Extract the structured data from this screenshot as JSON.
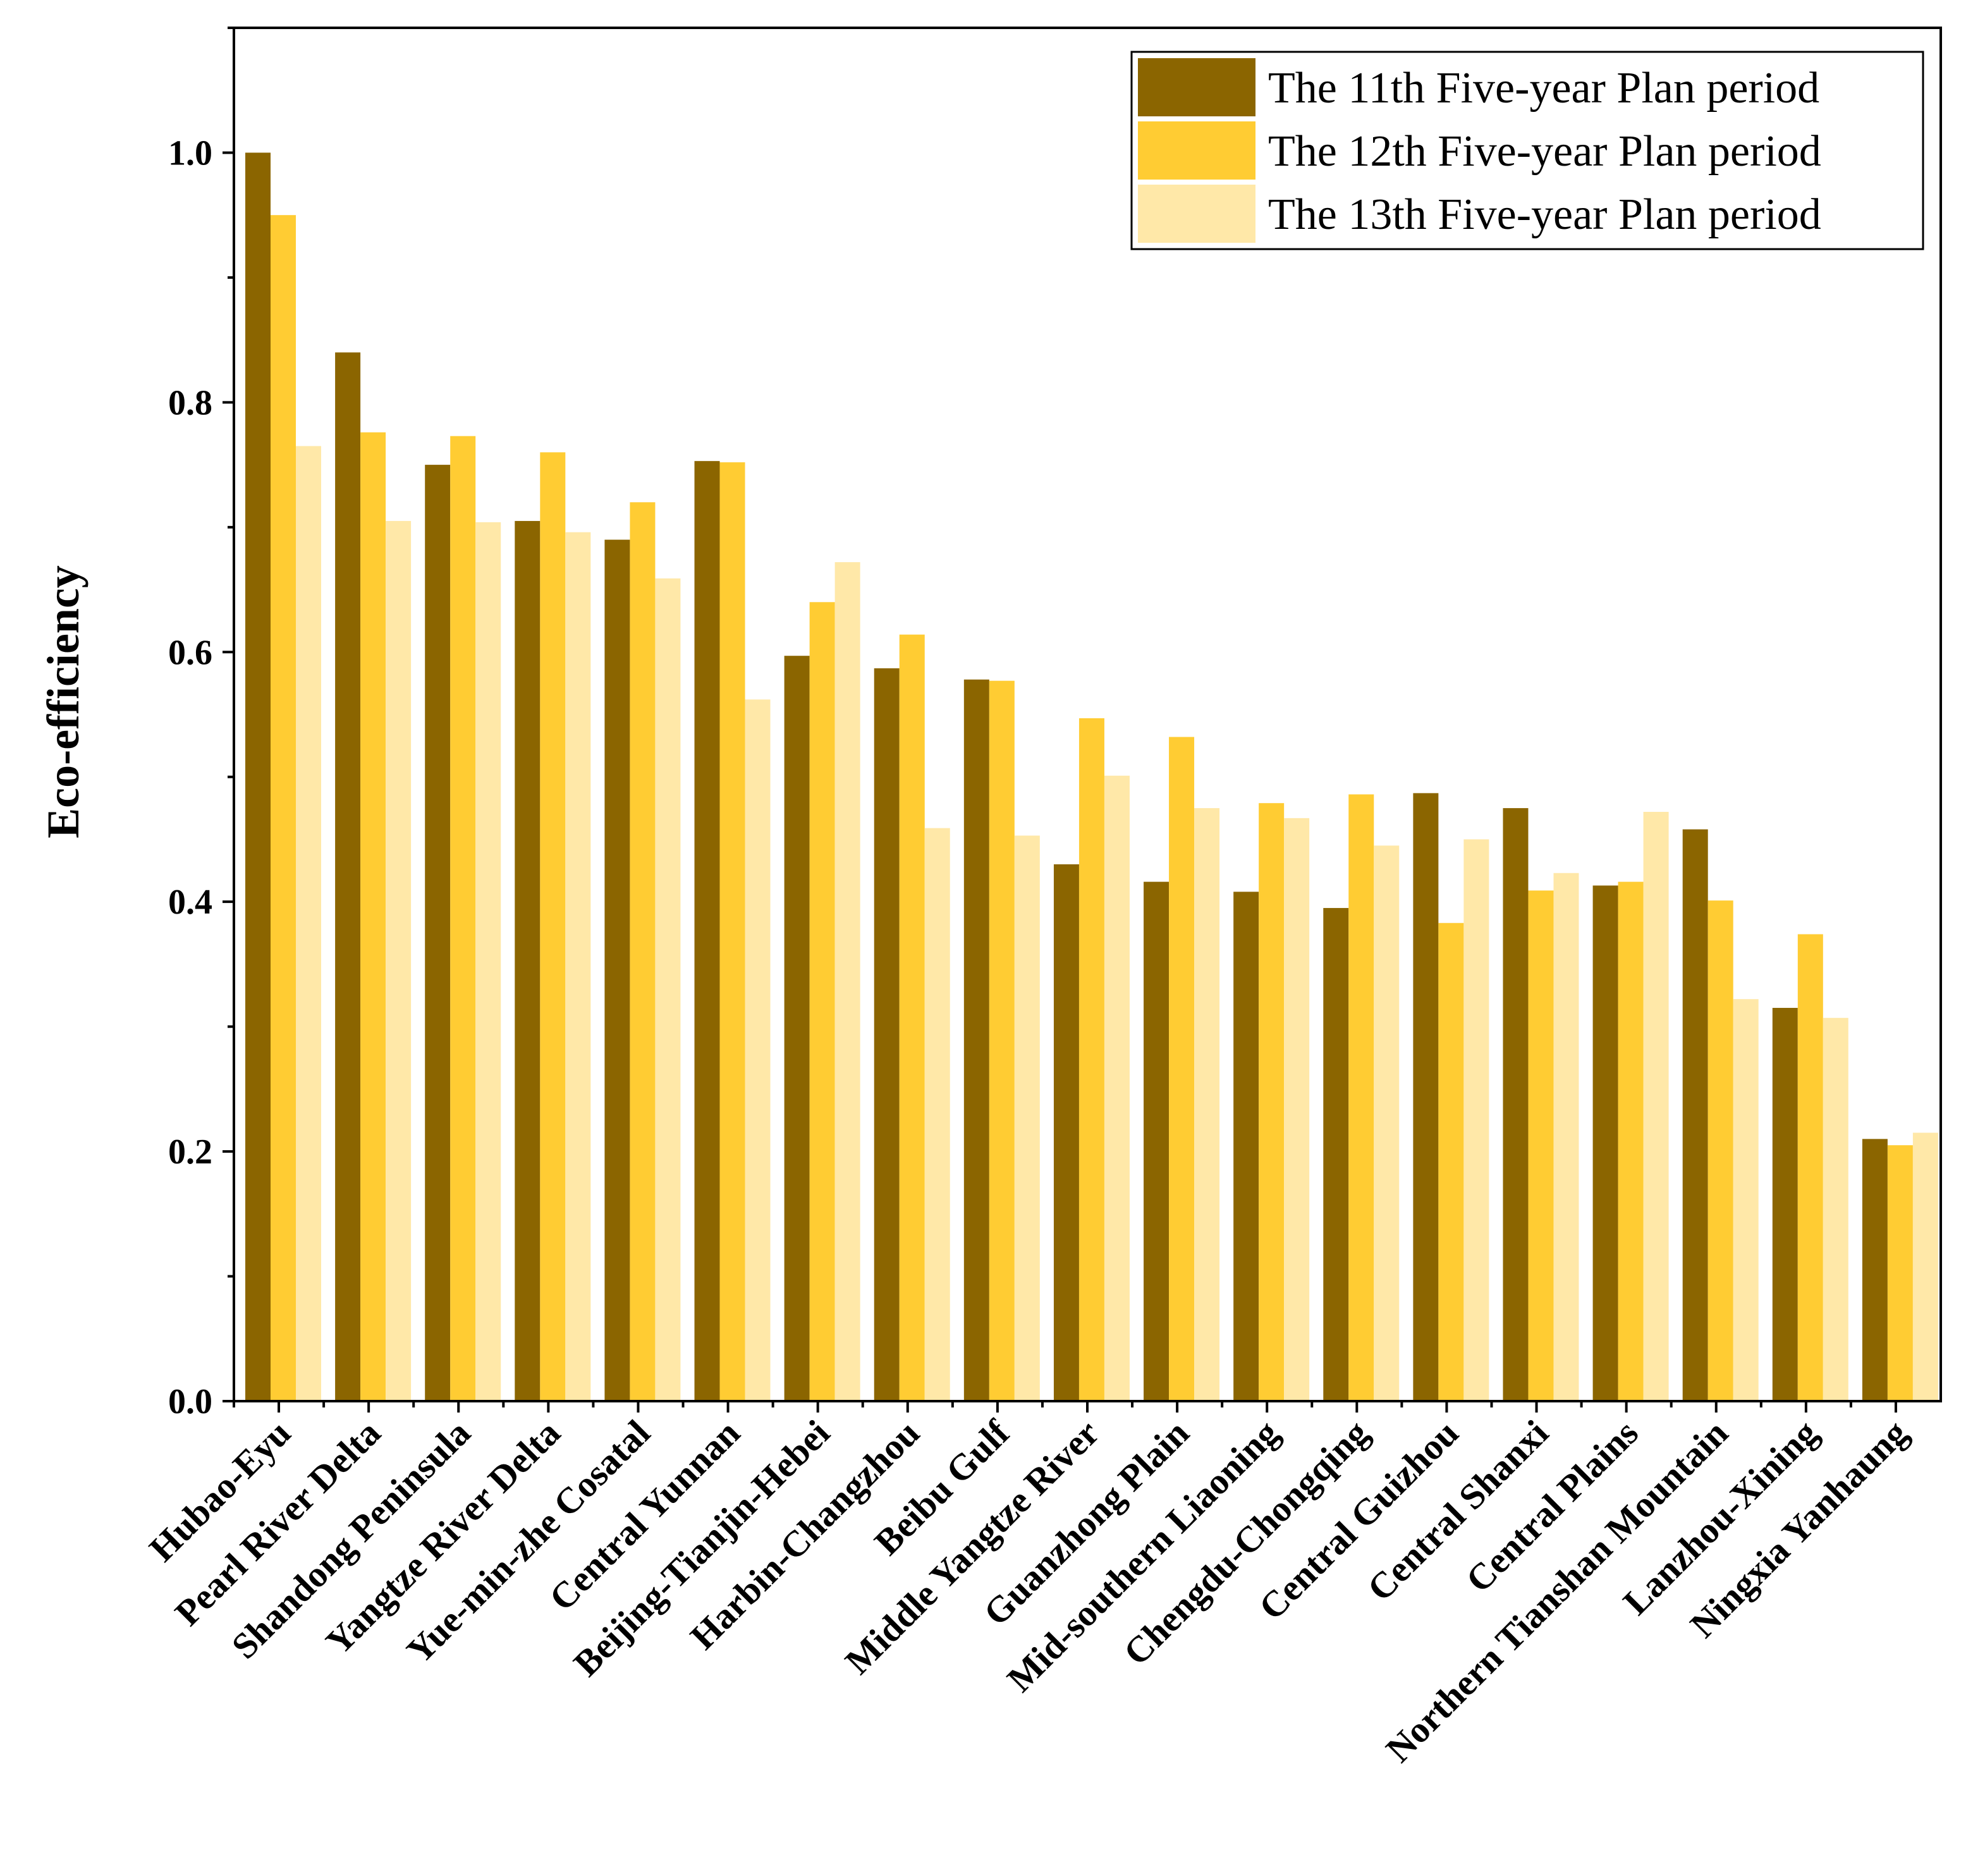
{
  "chart_data": {
    "type": "bar",
    "title": "",
    "xlabel": "",
    "ylabel": "Eco-efficiency",
    "ylim": [
      0,
      1.1
    ],
    "yticks": [
      "0.0",
      "0.2",
      "0.4",
      "0.6",
      "0.8",
      "1.0"
    ],
    "grid": false,
    "legend_position": "top-right",
    "categories": [
      "Hubao-Eyu",
      "Pearl River Delta",
      "Shandong Peninsula",
      "Yangtze River Delta",
      "Yue-min-zhe Cosatal",
      "Central Yunnan",
      "Beijing-Tianjin-Hebei",
      "Harbin-Changzhou",
      "Beibu Gulf",
      "Middle Yangtze River",
      "Guanzhong Plain",
      "Mid-southern Liaoning",
      "Chengdu-Chongqing",
      "Central Guizhou",
      "Central Shanxi",
      "Central Plains",
      "Northern Tianshan Mountain",
      "Lanzhou-Xining",
      "Ningxia Yanhaung"
    ],
    "series": [
      {
        "name": "The 11th Five-year Plan period",
        "color": "#8b6500",
        "values": [
          1.0,
          0.84,
          0.75,
          0.705,
          0.69,
          0.753,
          0.597,
          0.587,
          0.578,
          0.43,
          0.416,
          0.408,
          0.395,
          0.487,
          0.475,
          0.413,
          0.458,
          0.315,
          0.21
        ]
      },
      {
        "name": "The 12th Five-year Plan period",
        "color": "#ffcc33",
        "values": [
          0.95,
          0.776,
          0.773,
          0.76,
          0.72,
          0.752,
          0.64,
          0.614,
          0.577,
          0.547,
          0.532,
          0.479,
          0.486,
          0.383,
          0.409,
          0.416,
          0.401,
          0.374,
          0.205
        ]
      },
      {
        "name": "The 13th Five-year Plan period",
        "color": "#ffe8a8",
        "values": [
          0.765,
          0.705,
          0.704,
          0.696,
          0.659,
          0.562,
          0.672,
          0.459,
          0.453,
          0.501,
          0.475,
          0.467,
          0.445,
          0.45,
          0.423,
          0.472,
          0.322,
          0.307,
          0.215
        ]
      }
    ]
  }
}
